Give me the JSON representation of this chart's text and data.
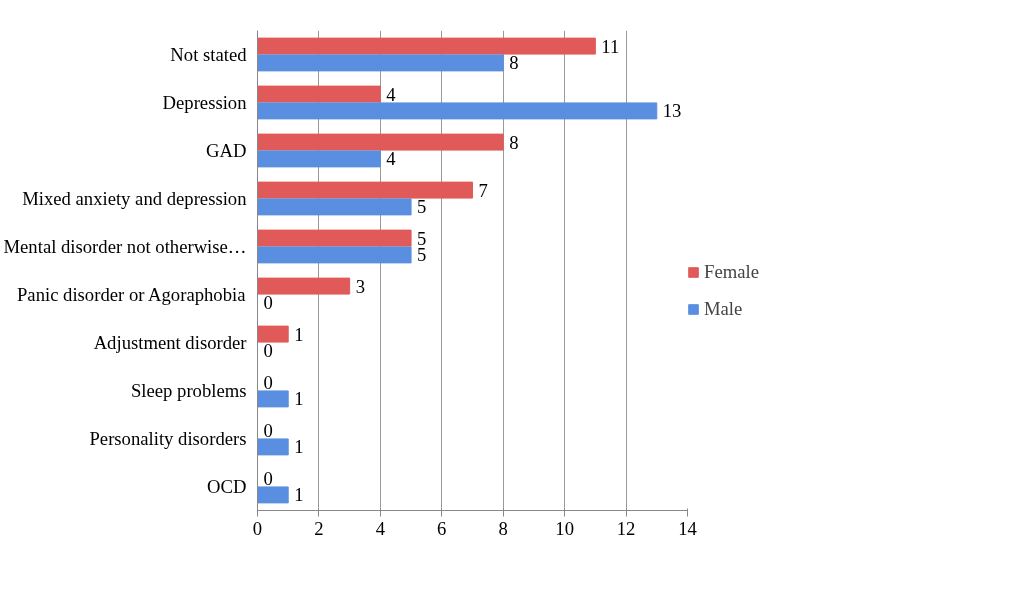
{
  "chart_data": {
    "type": "bar",
    "orientation": "horizontal",
    "categories": [
      "Not stated",
      "Depression",
      "GAD",
      "Mixed anxiety and depression",
      "Mental disorder not otherwise…",
      "Panic disorder or Agoraphobia",
      "Adjustment disorder",
      "Sleep problems",
      "Personality disorders",
      "OCD"
    ],
    "series": [
      {
        "name": "Female",
        "color": "#e05a5a",
        "values": [
          11,
          4,
          8,
          7,
          5,
          3,
          1,
          0,
          0,
          0
        ]
      },
      {
        "name": "Male",
        "color": "#5a8ee0",
        "values": [
          8,
          13,
          4,
          5,
          5,
          0,
          0,
          1,
          1,
          1
        ]
      }
    ],
    "xlim": [
      0,
      14
    ],
    "xticks": [
      0,
      2,
      4,
      6,
      8,
      10,
      12,
      14
    ],
    "grid": "x",
    "legend": "right",
    "data_labels": true
  }
}
